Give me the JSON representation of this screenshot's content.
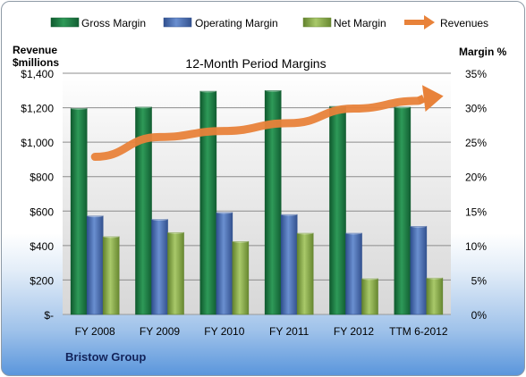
{
  "chart_data": {
    "type": "bar",
    "title": "12-Month Period Margins",
    "company_label": "Bristow Group",
    "left_axis_title": [
      "Revenue",
      "$millions"
    ],
    "right_axis_title": "Margin %",
    "categories": [
      "FY 2008",
      "FY 2009",
      "FY 2010",
      "FY 2011",
      "FY 2012",
      "TTM 6-2012"
    ],
    "left_axis": {
      "min": 0,
      "max": 1400,
      "step": 200,
      "tick_labels": [
        "$-",
        "$200",
        "$400",
        "$600",
        "$800",
        "$1,000",
        "$1,200",
        "$1,400"
      ]
    },
    "right_axis": {
      "min": 0,
      "max": 35,
      "step": 5,
      "tick_labels": [
        "0%",
        "5%",
        "10%",
        "15%",
        "20%",
        "25%",
        "30%",
        "35%"
      ]
    },
    "series": [
      {
        "name": "Gross Margin",
        "axis": "right",
        "color": "#1e7a45",
        "values": [
          29.9,
          30.1,
          32.4,
          32.5,
          30.2,
          30.1
        ]
      },
      {
        "name": "Operating Margin",
        "axis": "right",
        "color": "#4a6fb5",
        "values": [
          14.3,
          13.8,
          14.8,
          14.5,
          11.8,
          12.8
        ]
      },
      {
        "name": "Net Margin",
        "axis": "right",
        "color": "#8db04e",
        "values": [
          11.3,
          11.9,
          10.6,
          11.8,
          5.2,
          5.3
        ]
      }
    ],
    "revenue_series": {
      "name": "Revenues",
      "axis": "left",
      "color": "#e8823a",
      "values": [
        915,
        1030,
        1065,
        1110,
        1195,
        1240
      ]
    },
    "grid": true,
    "legend_position": "top"
  }
}
